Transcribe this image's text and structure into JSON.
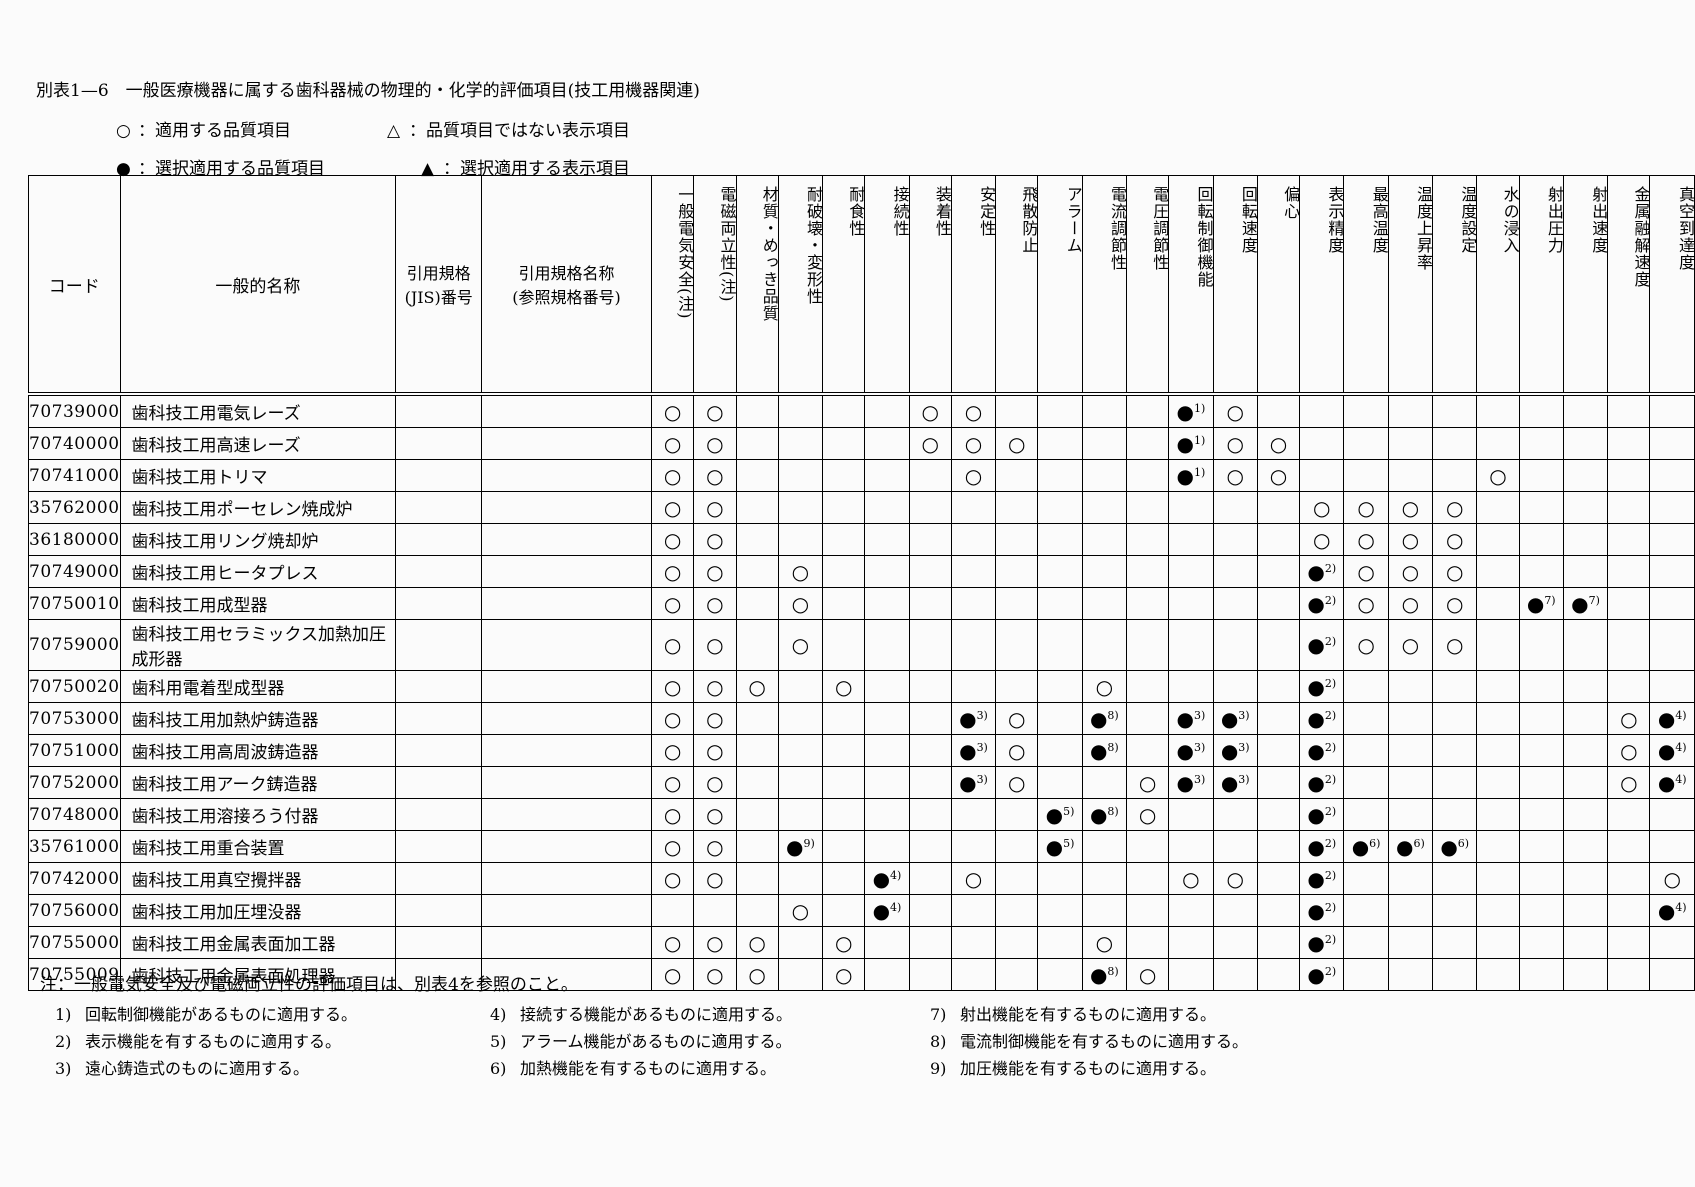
{
  "title": "別表1—6　一般医療機器に属する歯科器械の物理的・化学的評価項目(技工用機器関連)",
  "legend": {
    "items": [
      {
        "symbol": "○",
        "text": "：適用する品質項目"
      },
      {
        "symbol": "△",
        "text": "：品質項目ではない表示項目"
      },
      {
        "symbol": "●",
        "text": "：選択適用する品質項目"
      },
      {
        "symbol": "▲",
        "text": "：選択適用する表示項目"
      }
    ]
  },
  "table": {
    "headers": {
      "code": "コード",
      "name": "一般的名称",
      "jis_number": "引用規格\n(JIS)番号",
      "ref_name": "引用規格名称\n(参照規格番号)"
    },
    "columns": [
      "一般電気安全(注)",
      "電磁両立性(注)",
      "材質・めっき品質",
      "耐破壊・変形性",
      "耐食性",
      "接続性",
      "装着性",
      "安定性",
      "飛散防止",
      "アラーム",
      "電流調節性",
      "電圧調節性",
      "回転制御機能",
      "回転速度",
      "偏心",
      "表示精度",
      "最高温度",
      "温度上昇率",
      "温度設定",
      "水の浸入",
      "射出圧力",
      "射出速度",
      "金属融解速度",
      "真空到達度"
    ],
    "rows": [
      {
        "code": "70739000",
        "name": "歯科技工用電気レーズ",
        "jis_number": "",
        "ref_name": "",
        "marks": [
          "○",
          "○",
          "",
          "",
          "",
          "",
          "○",
          "○",
          "",
          "",
          "",
          "",
          "●1)",
          "○",
          "",
          "",
          "",
          "",
          "",
          "",
          "",
          "",
          "",
          ""
        ]
      },
      {
        "code": "70740000",
        "name": "歯科技工用高速レーズ",
        "jis_number": "",
        "ref_name": "",
        "marks": [
          "○",
          "○",
          "",
          "",
          "",
          "",
          "○",
          "○",
          "○",
          "",
          "",
          "",
          "●1)",
          "○",
          "○",
          "",
          "",
          "",
          "",
          "",
          "",
          "",
          "",
          ""
        ]
      },
      {
        "code": "70741000",
        "name": "歯科技工用トリマ",
        "jis_number": "",
        "ref_name": "",
        "marks": [
          "○",
          "○",
          "",
          "",
          "",
          "",
          "",
          "○",
          "",
          "",
          "",
          "",
          "●1)",
          "○",
          "○",
          "",
          "",
          "",
          "",
          "○",
          "",
          "",
          "",
          ""
        ]
      },
      {
        "code": "35762000",
        "name": "歯科技工用ポーセレン焼成炉",
        "jis_number": "",
        "ref_name": "",
        "marks": [
          "○",
          "○",
          "",
          "",
          "",
          "",
          "",
          "",
          "",
          "",
          "",
          "",
          "",
          "",
          "",
          "○",
          "○",
          "○",
          "○",
          "",
          "",
          "",
          "",
          ""
        ]
      },
      {
        "code": "36180000",
        "name": "歯科技工用リング焼却炉",
        "jis_number": "",
        "ref_name": "",
        "marks": [
          "○",
          "○",
          "",
          "",
          "",
          "",
          "",
          "",
          "",
          "",
          "",
          "",
          "",
          "",
          "",
          "○",
          "○",
          "○",
          "○",
          "",
          "",
          "",
          "",
          ""
        ]
      },
      {
        "code": "70749000",
        "name": "歯科技工用ヒータプレス",
        "jis_number": "",
        "ref_name": "",
        "marks": [
          "○",
          "○",
          "",
          "○",
          "",
          "",
          "",
          "",
          "",
          "",
          "",
          "",
          "",
          "",
          "",
          "●2)",
          "○",
          "○",
          "○",
          "",
          "",
          "",
          "",
          ""
        ]
      },
      {
        "code": "70750010",
        "name": "歯科技工用成型器",
        "jis_number": "",
        "ref_name": "",
        "marks": [
          "○",
          "○",
          "",
          "○",
          "",
          "",
          "",
          "",
          "",
          "",
          "",
          "",
          "",
          "",
          "",
          "●2)",
          "○",
          "○",
          "○",
          "",
          "●7)",
          "●7)",
          "",
          ""
        ]
      },
      {
        "code": "70759000",
        "name": "歯科技工用セラミックス加熱加圧成形器",
        "jis_number": "",
        "ref_name": "",
        "marks": [
          "○",
          "○",
          "",
          "○",
          "",
          "",
          "",
          "",
          "",
          "",
          "",
          "",
          "",
          "",
          "",
          "●2)",
          "○",
          "○",
          "○",
          "",
          "",
          "",
          "",
          ""
        ]
      },
      {
        "code": "70750020",
        "name": "歯科用電着型成型器",
        "jis_number": "",
        "ref_name": "",
        "marks": [
          "○",
          "○",
          "○",
          "",
          "○",
          "",
          "",
          "",
          "",
          "",
          "○",
          "",
          "",
          "",
          "",
          "●2)",
          "",
          "",
          "",
          "",
          "",
          "",
          "",
          ""
        ]
      },
      {
        "code": "70753000",
        "name": "歯科技工用加熱炉鋳造器",
        "jis_number": "",
        "ref_name": "",
        "marks": [
          "○",
          "○",
          "",
          "",
          "",
          "",
          "",
          "●3)",
          "○",
          "",
          "●8)",
          "",
          "●3)",
          "●3)",
          "",
          "●2)",
          "",
          "",
          "",
          "",
          "",
          "",
          "○",
          "●4)"
        ]
      },
      {
        "code": "70751000",
        "name": "歯科技工用高周波鋳造器",
        "jis_number": "",
        "ref_name": "",
        "marks": [
          "○",
          "○",
          "",
          "",
          "",
          "",
          "",
          "●3)",
          "○",
          "",
          "●8)",
          "",
          "●3)",
          "●3)",
          "",
          "●2)",
          "",
          "",
          "",
          "",
          "",
          "",
          "○",
          "●4)"
        ]
      },
      {
        "code": "70752000",
        "name": "歯科技工用アーク鋳造器",
        "jis_number": "",
        "ref_name": "",
        "marks": [
          "○",
          "○",
          "",
          "",
          "",
          "",
          "",
          "●3)",
          "○",
          "",
          "",
          "○",
          "●3)",
          "●3)",
          "",
          "●2)",
          "",
          "",
          "",
          "",
          "",
          "",
          "○",
          "●4)"
        ]
      },
      {
        "code": "70748000",
        "name": "歯科技工用溶接ろう付器",
        "jis_number": "",
        "ref_name": "",
        "marks": [
          "○",
          "○",
          "",
          "",
          "",
          "",
          "",
          "",
          "",
          "●5)",
          "●8)",
          "○",
          "",
          "",
          "",
          "●2)",
          "",
          "",
          "",
          "",
          "",
          "",
          "",
          ""
        ]
      },
      {
        "code": "35761000",
        "name": "歯科技工用重合装置",
        "jis_number": "",
        "ref_name": "",
        "marks": [
          "○",
          "○",
          "",
          "●9)",
          "",
          "",
          "",
          "",
          "",
          "●5)",
          "",
          "",
          "",
          "",
          "",
          "●2)",
          "●6)",
          "●6)",
          "●6)",
          "",
          "",
          "",
          "",
          ""
        ]
      },
      {
        "code": "70742000",
        "name": "歯科技工用真空攪拌器",
        "jis_number": "",
        "ref_name": "",
        "marks": [
          "○",
          "○",
          "",
          "",
          "",
          "●4)",
          "",
          "○",
          "",
          "",
          "",
          "",
          "○",
          "○",
          "",
          "●2)",
          "",
          "",
          "",
          "",
          "",
          "",
          "",
          "○"
        ]
      },
      {
        "code": "70756000",
        "name": "歯科技工用加圧埋没器",
        "jis_number": "",
        "ref_name": "",
        "marks": [
          "",
          "",
          "",
          "○",
          "",
          "●4)",
          "",
          "",
          "",
          "",
          "",
          "",
          "",
          "",
          "",
          "●2)",
          "",
          "",
          "",
          "",
          "",
          "",
          "",
          "●4)"
        ]
      },
      {
        "code": "70755000",
        "name": "歯科技工用金属表面加工器",
        "jis_number": "",
        "ref_name": "",
        "marks": [
          "○",
          "○",
          "○",
          "",
          "○",
          "",
          "",
          "",
          "",
          "",
          "○",
          "",
          "",
          "",
          "",
          "●2)",
          "",
          "",
          "",
          "",
          "",
          "",
          "",
          ""
        ]
      },
      {
        "code": "70755009",
        "name": "歯科技工用金属表面処理器",
        "jis_number": "",
        "ref_name": "",
        "marks": [
          "○",
          "○",
          "○",
          "",
          "○",
          "",
          "",
          "",
          "",
          "",
          "●8)",
          "○",
          "",
          "",
          "",
          "●2)",
          "",
          "",
          "",
          "",
          "",
          "",
          "",
          ""
        ]
      }
    ]
  },
  "footer": {
    "note": "注：一般電気安全及び電磁両立性の評価項目は、別表4を参照のこと。",
    "footnotes": [
      {
        "num": "1)",
        "text": "回転制御機能があるものに適用する。"
      },
      {
        "num": "2)",
        "text": "表示機能を有するものに適用する。"
      },
      {
        "num": "3)",
        "text": "遠心鋳造式のものに適用する。"
      },
      {
        "num": "4)",
        "text": "接続する機能があるものに適用する。"
      },
      {
        "num": "5)",
        "text": "アラーム機能があるものに適用する。"
      },
      {
        "num": "6)",
        "text": "加熱機能を有するものに適用する。"
      },
      {
        "num": "7)",
        "text": "射出機能を有するものに適用する。"
      },
      {
        "num": "8)",
        "text": "電流制御機能を有するものに適用する。"
      },
      {
        "num": "9)",
        "text": "加圧機能を有するものに適用する。"
      }
    ]
  }
}
